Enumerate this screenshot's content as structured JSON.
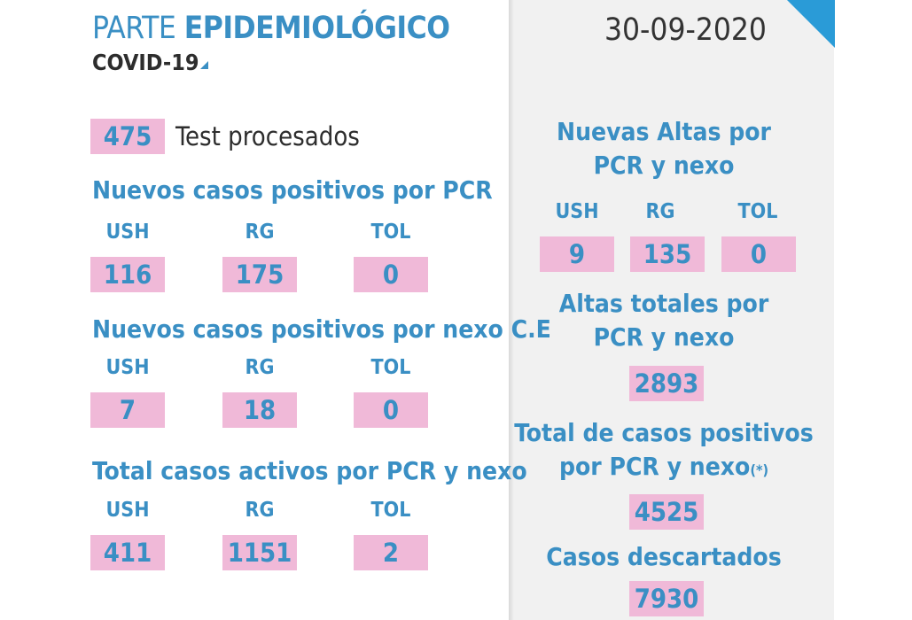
{
  "header": {
    "title_prefix": "PARTE",
    "title_main": "EPIDEMIOLÓGICO",
    "subtitle": "COVID-19",
    "date": "30-09-2020"
  },
  "tests": {
    "value": "475",
    "label": "Test procesados"
  },
  "col_labels": [
    "USH",
    "RG",
    "TOL"
  ],
  "sections": [
    {
      "title": "Nuevos casos positivos por PCR",
      "values": [
        "116",
        "175",
        "0"
      ]
    },
    {
      "title": "Nuevos casos positivos por nexo C.E",
      "values": [
        "7",
        "18",
        "0"
      ]
    },
    {
      "title": "Total casos activos por PCR y nexo",
      "values": [
        "411",
        "1151",
        "2"
      ]
    }
  ],
  "right": {
    "altas": {
      "title_line1": "Nuevas Altas por",
      "title_line2": "PCR y nexo",
      "values": [
        "9",
        "135",
        "0"
      ]
    },
    "altas_totales": {
      "title_line1": "Altas totales por",
      "title_line2": "PCR y nexo",
      "value": "2893"
    },
    "total_positivos": {
      "title_line1": "Total de casos positivos",
      "title_line2": "por PCR y nexo",
      "note": "(*)",
      "value": "4525"
    },
    "descartados": {
      "title": "Casos descartados",
      "value": "7930"
    }
  },
  "colors": {
    "blue": "#3a8fc4",
    "pink": "#f0b9d8",
    "accent": "#2a9bd7",
    "panel": "#f1f1f1"
  }
}
